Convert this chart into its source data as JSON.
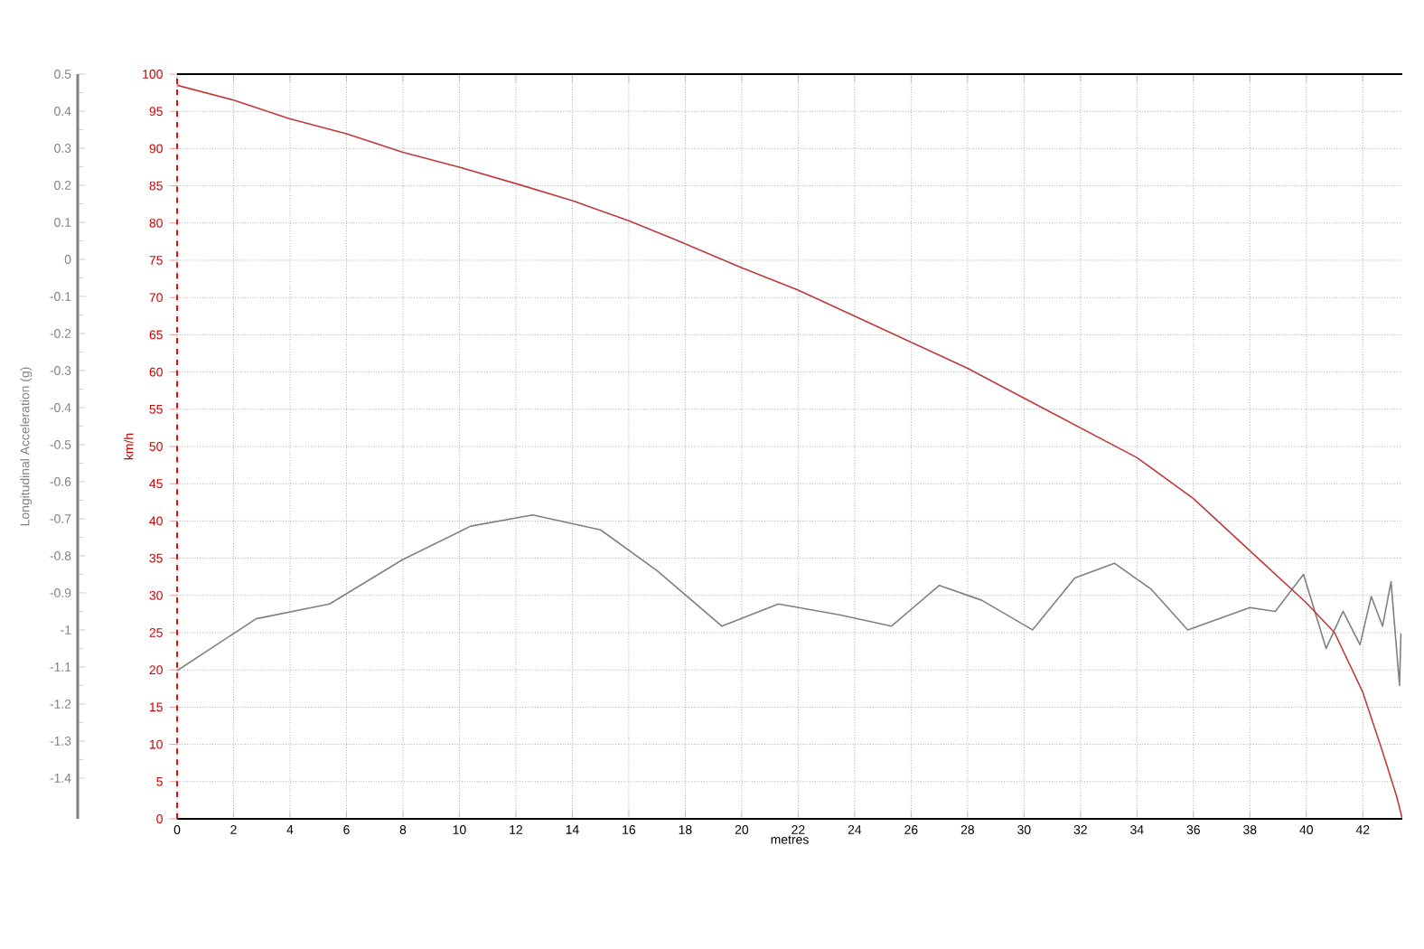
{
  "chart_data": {
    "type": "line",
    "xlabel": "metres",
    "ylabel": "km/h",
    "y2label": "Longitudinal Acceleration (g)",
    "xlim": [
      0,
      43.4
    ],
    "xticks": [
      0,
      2,
      4,
      6,
      8,
      10,
      12,
      14,
      16,
      18,
      20,
      22,
      24,
      26,
      28,
      30,
      32,
      34,
      36,
      38,
      40,
      42
    ],
    "ylim": [
      0,
      100
    ],
    "yticks": [
      0,
      5,
      10,
      15,
      20,
      25,
      30,
      35,
      40,
      45,
      50,
      55,
      60,
      65,
      70,
      75,
      80,
      85,
      90,
      95,
      100
    ],
    "y2lim": [
      -1.51,
      0.5
    ],
    "y2ticks": [
      -1.4,
      -1.3,
      -1.2,
      -1.1,
      -1,
      -0.9,
      -0.8,
      -0.7,
      -0.6,
      -0.5,
      -0.4,
      -0.3,
      -0.2,
      -0.1,
      0,
      0.1,
      0.2,
      0.3,
      0.4,
      0.5
    ],
    "grid": true,
    "marker": "none",
    "line_style": "solid",
    "series": [
      {
        "color": "#c0393b",
        "x": [
          0,
          2,
          4,
          6,
          8,
          10,
          12,
          14,
          16,
          17.5,
          20,
          22,
          24,
          26,
          28,
          30,
          32,
          34,
          36,
          38,
          40,
          41,
          42,
          42.7,
          43.2,
          43.4
        ],
        "values": [
          98.5,
          96.5,
          94,
          92,
          89.5,
          87.5,
          85.3,
          83,
          80.3,
          78,
          74,
          71,
          67.5,
          64,
          60.5,
          56.5,
          52.5,
          48.5,
          43,
          36,
          29,
          25,
          17,
          9,
          3,
          0
        ]
      },
      {
        "color": "#808080",
        "axis": "y2",
        "x": [
          0,
          2.8,
          5.4,
          8,
          10.4,
          12.6,
          15,
          17,
          19.3,
          21.3,
          23.5,
          25.3,
          27,
          28.5,
          30.3,
          31.8,
          33.2,
          34.5,
          35.8,
          38,
          38.9,
          39.9,
          40.7,
          41.3,
          41.9,
          42.3,
          42.7,
          43.0,
          43.3,
          43.35
        ],
        "values": [
          -1.11,
          -0.97,
          -0.93,
          -0.81,
          -0.72,
          -0.69,
          -0.73,
          -0.84,
          -0.99,
          -0.93,
          -0.96,
          -0.99,
          -0.88,
          -0.92,
          -1.0,
          -0.86,
          -0.82,
          -0.89,
          -1.0,
          -0.94,
          -0.95,
          -0.85,
          -1.05,
          -0.95,
          -1.04,
          -0.91,
          -0.99,
          -0.87,
          -1.15,
          -1.01
        ]
      }
    ]
  }
}
